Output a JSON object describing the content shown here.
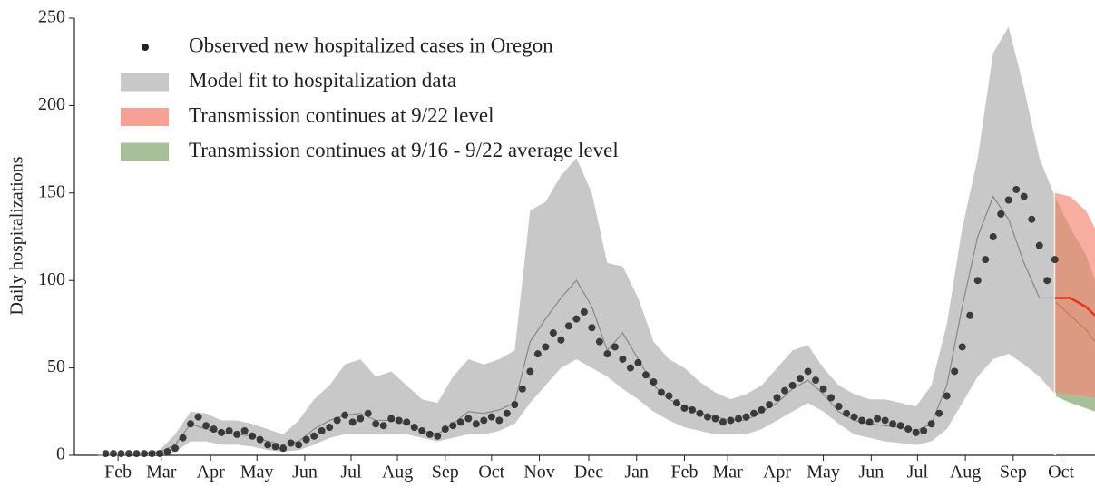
{
  "chart_data": {
    "type": "line",
    "ylabel": "Daily hospitalizations",
    "xlim": [
      30,
      676
    ],
    "ylim": [
      0,
      250
    ],
    "yticks": [
      0,
      50,
      100,
      150,
      200,
      250
    ],
    "xticks": [
      {
        "value": 43,
        "label": "Feb"
      },
      {
        "value": 71,
        "label": "Mar"
      },
      {
        "value": 103,
        "label": "Apr"
      },
      {
        "value": 133,
        "label": "May"
      },
      {
        "value": 164,
        "label": "Jun"
      },
      {
        "value": 194,
        "label": "Jul"
      },
      {
        "value": 224,
        "label": "Aug"
      },
      {
        "value": 255,
        "label": "Sep"
      },
      {
        "value": 285,
        "label": "Oct"
      },
      {
        "value": 316,
        "label": "Nov"
      },
      {
        "value": 348,
        "label": "Dec"
      },
      {
        "value": 379,
        "label": "Jan"
      },
      {
        "value": 410,
        "label": "Feb"
      },
      {
        "value": 438,
        "label": "Mar"
      },
      {
        "value": 470,
        "label": "Apr"
      },
      {
        "value": 500,
        "label": "May"
      },
      {
        "value": 531,
        "label": "Jun"
      },
      {
        "value": 561,
        "label": "Jul"
      },
      {
        "value": 592,
        "label": "Aug"
      },
      {
        "value": 623,
        "label": "Sep"
      },
      {
        "value": 654,
        "label": "Oct"
      }
    ],
    "legend": "upper left",
    "series": [
      {
        "name": "Model fit to hospitalization data",
        "type": "band",
        "color": "#c8c8c8",
        "line_color": "#888888",
        "x": [
          30,
          40,
          50,
          60,
          70,
          80,
          90,
          100,
          110,
          120,
          130,
          140,
          150,
          160,
          170,
          180,
          190,
          200,
          210,
          220,
          230,
          240,
          250,
          260,
          270,
          280,
          290,
          300,
          310,
          320,
          330,
          340,
          350,
          360,
          370,
          380,
          390,
          400,
          410,
          420,
          430,
          440,
          450,
          460,
          470,
          480,
          490,
          500,
          510,
          520,
          530,
          540,
          550,
          560,
          570,
          580,
          590,
          600,
          610,
          620,
          630,
          640,
          650
        ],
        "lower": [
          0,
          0,
          0,
          0,
          0,
          2,
          8,
          8,
          6,
          6,
          5,
          3,
          2,
          3,
          6,
          10,
          12,
          12,
          12,
          12,
          12,
          10,
          8,
          10,
          12,
          12,
          14,
          18,
          30,
          40,
          50,
          55,
          50,
          45,
          38,
          32,
          25,
          20,
          16,
          14,
          12,
          12,
          12,
          15,
          20,
          25,
          30,
          25,
          18,
          12,
          10,
          8,
          7,
          6,
          8,
          15,
          30,
          45,
          55,
          58,
          52,
          45,
          35
        ],
        "upper": [
          1,
          1,
          1,
          2,
          3,
          12,
          25,
          24,
          20,
          20,
          18,
          15,
          12,
          20,
          32,
          40,
          52,
          55,
          45,
          48,
          40,
          32,
          30,
          45,
          55,
          52,
          55,
          60,
          140,
          145,
          160,
          170,
          150,
          110,
          108,
          90,
          65,
          55,
          50,
          42,
          36,
          32,
          35,
          40,
          50,
          60,
          63,
          50,
          40,
          35,
          32,
          32,
          30,
          28,
          40,
          75,
          130,
          170,
          230,
          245,
          210,
          170,
          148
        ],
        "median": [
          0,
          0,
          0,
          1,
          2,
          6,
          18,
          15,
          13,
          12,
          11,
          8,
          6,
          8,
          15,
          20,
          23,
          24,
          20,
          20,
          18,
          14,
          12,
          18,
          25,
          24,
          26,
          30,
          65,
          78,
          90,
          100,
          85,
          60,
          70,
          55,
          40,
          32,
          28,
          24,
          22,
          20,
          20,
          25,
          30,
          38,
          43,
          35,
          25,
          20,
          18,
          17,
          16,
          14,
          18,
          40,
          85,
          125,
          148,
          135,
          110,
          90,
          90
        ]
      },
      {
        "name": "Transmission continues at 9/16 - 9/22 average level",
        "type": "band",
        "color": "#a8c09a",
        "line_color": "#6b4a1a",
        "x": [
          650,
          660,
          670,
          676
        ],
        "lower": [
          34,
          30,
          27,
          25
        ],
        "upper": [
          148,
          130,
          115,
          100
        ],
        "median": [
          88,
          80,
          72,
          65
        ]
      },
      {
        "name": "Transmission continues at 9/22 level",
        "type": "band",
        "color": "#f48a78",
        "line_color": "#e8351c",
        "opacity": 0.7,
        "x": [
          650,
          660,
          670,
          676
        ],
        "lower": [
          36,
          35,
          34,
          33
        ],
        "upper": [
          150,
          148,
          140,
          130
        ],
        "median": [
          90,
          90,
          85,
          80
        ]
      },
      {
        "name": "Observed new hospitalized cases in Oregon",
        "type": "scatter",
        "color": "#222222",
        "x": [
          35,
          40,
          45,
          50,
          55,
          60,
          65,
          70,
          75,
          80,
          85,
          90,
          95,
          100,
          105,
          110,
          115,
          120,
          125,
          130,
          135,
          140,
          145,
          150,
          155,
          160,
          165,
          170,
          175,
          180,
          185,
          190,
          195,
          200,
          205,
          210,
          215,
          220,
          225,
          230,
          235,
          240,
          245,
          250,
          255,
          260,
          265,
          270,
          275,
          280,
          285,
          290,
          295,
          300,
          305,
          310,
          315,
          320,
          325,
          330,
          335,
          340,
          345,
          350,
          355,
          360,
          365,
          370,
          375,
          380,
          385,
          390,
          395,
          400,
          405,
          410,
          415,
          420,
          425,
          430,
          435,
          440,
          445,
          450,
          455,
          460,
          465,
          470,
          475,
          480,
          485,
          490,
          495,
          500,
          505,
          510,
          515,
          520,
          525,
          530,
          535,
          540,
          545,
          550,
          555,
          560,
          565,
          570,
          575,
          580,
          585,
          590,
          595,
          600,
          605,
          610,
          615,
          620,
          625,
          630,
          635,
          640,
          645,
          650
        ],
        "values": [
          1,
          1,
          1,
          1,
          1,
          1,
          1,
          1,
          2,
          4,
          10,
          18,
          22,
          17,
          15,
          13,
          14,
          12,
          14,
          11,
          9,
          6,
          5,
          4,
          7,
          6,
          9,
          11,
          14,
          16,
          20,
          23,
          19,
          21,
          24,
          18,
          17,
          21,
          20,
          19,
          16,
          14,
          12,
          11,
          15,
          17,
          19,
          21,
          18,
          20,
          22,
          20,
          24,
          29,
          38,
          48,
          58,
          62,
          70,
          66,
          74,
          78,
          82,
          73,
          65,
          58,
          62,
          55,
          50,
          53,
          46,
          42,
          36,
          34,
          30,
          27,
          26,
          24,
          22,
          21,
          19,
          20,
          21,
          22,
          24,
          26,
          29,
          33,
          37,
          40,
          44,
          48,
          43,
          38,
          33,
          28,
          24,
          22,
          20,
          19,
          21,
          20,
          18,
          17,
          15,
          13,
          14,
          18,
          24,
          34,
          48,
          62,
          80,
          100,
          112,
          125,
          138,
          146,
          152,
          148,
          135,
          120,
          100,
          112
        ]
      }
    ]
  }
}
